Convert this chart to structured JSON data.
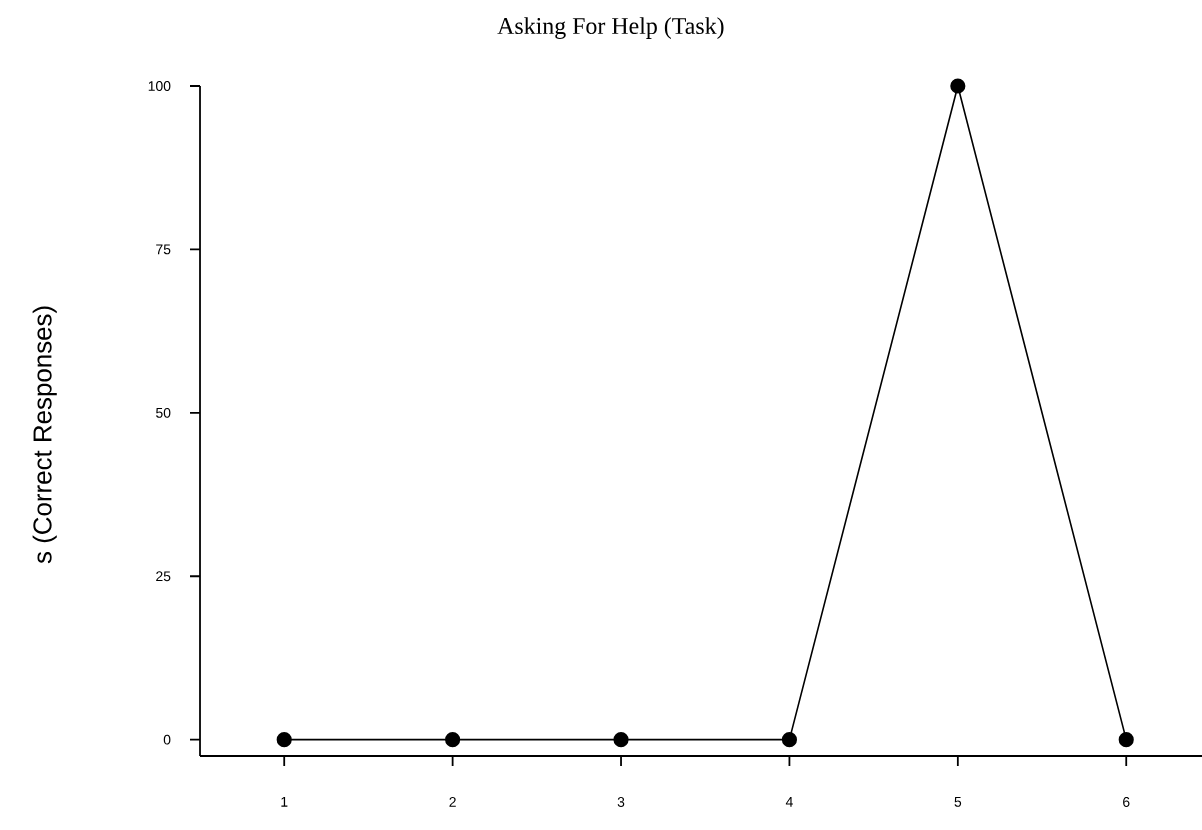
{
  "chart_data": {
    "type": "line",
    "title": "Asking For Help (Task)",
    "ylabel": "s (Correct Responses)",
    "x": [
      1,
      2,
      3,
      4,
      5,
      6
    ],
    "series": [
      {
        "color": "#000000",
        "values": [
          0,
          0,
          0,
          0,
          100,
          0
        ]
      }
    ],
    "xlim": [
      0.5,
      6.45
    ],
    "ylim": [
      -2.5,
      100
    ],
    "xticks": [
      1,
      2,
      3,
      4,
      5,
      6
    ],
    "yticks": [
      0,
      25,
      50,
      75,
      100
    ],
    "marker": "circle",
    "line_style": "solid"
  }
}
